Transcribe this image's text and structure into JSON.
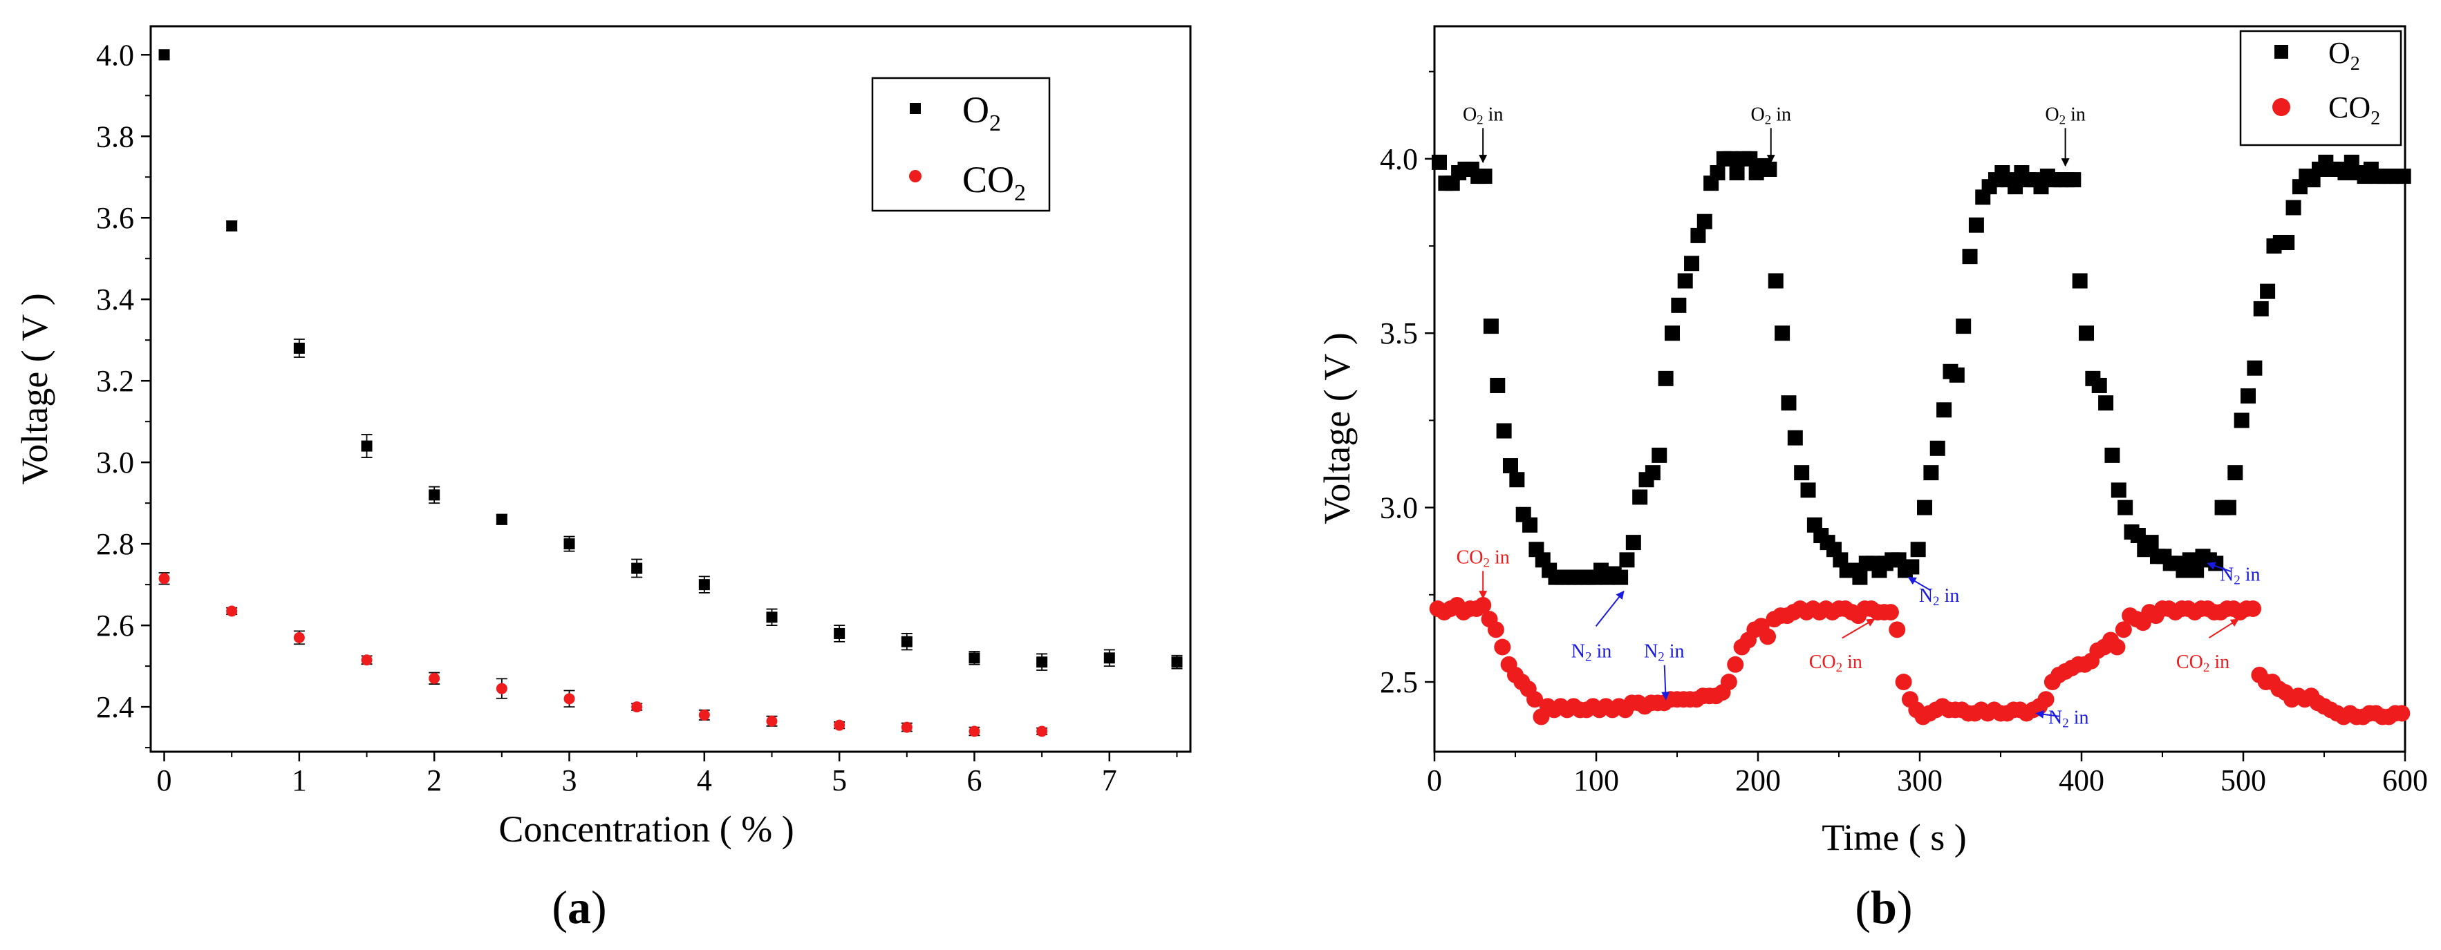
{
  "chart_data": [
    {
      "type": "scatter",
      "panel_label": "a",
      "xlabel": "Concentration ( % )",
      "ylabel": "Voltage ( V )",
      "xlim": [
        -0.1,
        7.6
      ],
      "ylim": [
        2.29,
        4.07
      ],
      "xticks": [
        0,
        1,
        2,
        3,
        4,
        5,
        6,
        7
      ],
      "yticks": [
        2.4,
        2.6,
        2.8,
        3.0,
        3.2,
        3.4,
        3.6,
        3.8,
        4.0
      ],
      "xtick_labels": [
        "0",
        "1",
        "2",
        "3",
        "4",
        "5",
        "6",
        "7"
      ],
      "ytick_labels": [
        "2.4",
        "2.6",
        "2.8",
        "3.0",
        "3.2",
        "3.4",
        "3.6",
        "3.8",
        "4.0"
      ],
      "legend_position": "top-right",
      "series": [
        {
          "name": "O2",
          "label_main": "O",
          "label_sub": "2",
          "color": "#000000",
          "marker": "square",
          "x": [
            0,
            0.5,
            1,
            1.5,
            2,
            2.5,
            3,
            3.5,
            4,
            4.5,
            5,
            5.5,
            6,
            6.5,
            7,
            7.5
          ],
          "y": [
            4.0,
            3.58,
            3.28,
            3.04,
            2.92,
            2.86,
            2.8,
            2.74,
            2.7,
            2.62,
            2.58,
            2.56,
            2.52,
            2.51,
            2.52,
            2.51
          ],
          "err": [
            0.012,
            0.012,
            0.022,
            0.028,
            0.02,
            0.012,
            0.018,
            0.022,
            0.02,
            0.02,
            0.02,
            0.02,
            0.016,
            0.02,
            0.02,
            0.016
          ]
        },
        {
          "name": "CO2",
          "label_main": "CO",
          "label_sub": "2",
          "color": "#ee1c1c",
          "marker": "circle",
          "x": [
            0,
            0.5,
            1,
            1.5,
            2,
            2.5,
            3,
            3.5,
            4,
            4.5,
            5,
            5.5,
            6,
            6.5
          ],
          "y": [
            2.715,
            2.635,
            2.57,
            2.515,
            2.47,
            2.445,
            2.42,
            2.4,
            2.38,
            2.365,
            2.355,
            2.35,
            2.34,
            2.34
          ],
          "err": [
            0.014,
            0.008,
            0.016,
            0.01,
            0.014,
            0.024,
            0.02,
            0.008,
            0.012,
            0.012,
            0.008,
            0.01,
            0.01,
            0.008
          ]
        }
      ]
    },
    {
      "type": "scatter",
      "panel_label": "b",
      "xlabel": "Time ( s )",
      "ylabel": "Voltage ( V )",
      "xlim": [
        0,
        600
      ],
      "ylim": [
        2.3,
        4.38
      ],
      "xticks": [
        0,
        100,
        200,
        300,
        400,
        500,
        600
      ],
      "yticks": [
        2.5,
        3.0,
        3.5,
        4.0
      ],
      "xtick_labels": [
        "0",
        "100",
        "200",
        "300",
        "400",
        "500",
        "600"
      ],
      "ytick_labels": [
        "2.5",
        "3.0",
        "3.5",
        "4.0"
      ],
      "legend_position": "top-right",
      "series": [
        {
          "name": "O2",
          "label_main": "O",
          "label_sub": "2",
          "color": "#000000",
          "marker": "square",
          "x": [
            3,
            7,
            11,
            15,
            19,
            23,
            27,
            31,
            35,
            39,
            43,
            47,
            51,
            55,
            59,
            63,
            67,
            71,
            75,
            79,
            83,
            87,
            91,
            95,
            99,
            103,
            107,
            111,
            115,
            119,
            123,
            127,
            131,
            135,
            139,
            143,
            147,
            151,
            155,
            159,
            163,
            167,
            171,
            175,
            179,
            183,
            187,
            191,
            195,
            199,
            203,
            207,
            211,
            215,
            219,
            223,
            227,
            231,
            235,
            239,
            243,
            247,
            251,
            255,
            259,
            263,
            267,
            271,
            275,
            279,
            283,
            287,
            291,
            295,
            299,
            303,
            307,
            311,
            315,
            319,
            323,
            327,
            331,
            335,
            339,
            343,
            347,
            351,
            355,
            359,
            363,
            367,
            371,
            375,
            379,
            383,
            387,
            391,
            395,
            399,
            403,
            407,
            411,
            415,
            419,
            423,
            427,
            431,
            435,
            439,
            443,
            447,
            451,
            455,
            459,
            463,
            467,
            471,
            475,
            479,
            483,
            487,
            491,
            495,
            499,
            503,
            507,
            511,
            515,
            519,
            523,
            527,
            531,
            535,
            539,
            543,
            547,
            551,
            555,
            559,
            563,
            567,
            571,
            575,
            579,
            583,
            587,
            591,
            595,
            599
          ],
          "y": [
            3.99,
            3.93,
            3.93,
            3.96,
            3.97,
            3.97,
            3.95,
            3.95,
            3.52,
            3.35,
            3.22,
            3.12,
            3.08,
            2.98,
            2.95,
            2.88,
            2.85,
            2.82,
            2.8,
            2.8,
            2.8,
            2.8,
            2.8,
            2.8,
            2.8,
            2.82,
            2.8,
            2.81,
            2.8,
            2.85,
            2.9,
            3.03,
            3.08,
            3.1,
            3.15,
            3.37,
            3.5,
            3.58,
            3.65,
            3.7,
            3.78,
            3.82,
            3.93,
            3.96,
            4.0,
            4.0,
            3.96,
            4.0,
            4.0,
            3.96,
            3.98,
            3.97,
            3.65,
            3.5,
            3.3,
            3.2,
            3.1,
            3.05,
            2.95,
            2.92,
            2.9,
            2.88,
            2.85,
            2.82,
            2.82,
            2.8,
            2.84,
            2.84,
            2.82,
            2.84,
            2.85,
            2.85,
            2.82,
            2.83,
            2.88,
            3.0,
            3.1,
            3.17,
            3.28,
            3.39,
            3.38,
            3.52,
            3.72,
            3.81,
            3.89,
            3.92,
            3.94,
            3.96,
            3.94,
            3.92,
            3.96,
            3.94,
            3.94,
            3.92,
            3.95,
            3.94,
            3.94,
            3.94,
            3.94,
            3.65,
            3.5,
            3.37,
            3.35,
            3.3,
            3.15,
            3.05,
            3.0,
            2.93,
            2.92,
            2.88,
            2.9,
            2.86,
            2.86,
            2.84,
            2.84,
            2.82,
            2.85,
            2.82,
            2.86,
            2.85,
            2.84,
            3.0,
            3.0,
            3.1,
            3.25,
            3.32,
            3.4,
            3.57,
            3.62,
            3.75,
            3.76,
            3.76,
            3.86,
            3.92,
            3.95,
            3.94,
            3.97,
            3.99,
            3.97,
            3.97,
            3.96,
            3.99,
            3.96,
            3.95,
            3.97,
            3.95,
            3.95,
            3.95,
            3.95,
            3.95
          ]
        },
        {
          "name": "CO2",
          "label_main": "CO",
          "label_sub": "2",
          "color": "#ee1c1c",
          "marker": "circle",
          "x": [
            2,
            6,
            10,
            14,
            18,
            22,
            26,
            30,
            34,
            38,
            42,
            46,
            50,
            54,
            58,
            62,
            66,
            70,
            74,
            78,
            82,
            86,
            90,
            94,
            98,
            102,
            106,
            110,
            114,
            118,
            122,
            126,
            130,
            134,
            138,
            142,
            146,
            150,
            154,
            158,
            162,
            166,
            170,
            174,
            178,
            182,
            186,
            190,
            194,
            198,
            202,
            206,
            210,
            214,
            218,
            222,
            226,
            230,
            234,
            238,
            242,
            246,
            250,
            254,
            258,
            262,
            266,
            270,
            274,
            278,
            282,
            286,
            290,
            294,
            298,
            302,
            306,
            310,
            314,
            318,
            322,
            326,
            330,
            334,
            338,
            342,
            346,
            350,
            354,
            358,
            362,
            366,
            370,
            374,
            378,
            382,
            386,
            390,
            394,
            398,
            402,
            406,
            410,
            414,
            418,
            422,
            426,
            430,
            434,
            438,
            442,
            446,
            450,
            454,
            458,
            462,
            466,
            470,
            474,
            478,
            482,
            486,
            490,
            494,
            498,
            502,
            506,
            510,
            514,
            518,
            522,
            526,
            530,
            534,
            538,
            542,
            546,
            550,
            554,
            558,
            562,
            566,
            570,
            574,
            578,
            582,
            586,
            590,
            594,
            598
          ],
          "y": [
            2.71,
            2.7,
            2.71,
            2.72,
            2.7,
            2.71,
            2.71,
            2.72,
            2.68,
            2.65,
            2.6,
            2.55,
            2.52,
            2.5,
            2.48,
            2.45,
            2.4,
            2.43,
            2.42,
            2.43,
            2.42,
            2.43,
            2.42,
            2.42,
            2.43,
            2.42,
            2.43,
            2.42,
            2.43,
            2.42,
            2.44,
            2.44,
            2.43,
            2.44,
            2.44,
            2.44,
            2.45,
            2.45,
            2.45,
            2.45,
            2.45,
            2.46,
            2.46,
            2.46,
            2.47,
            2.5,
            2.55,
            2.6,
            2.62,
            2.65,
            2.66,
            2.63,
            2.68,
            2.69,
            2.69,
            2.7,
            2.71,
            2.7,
            2.71,
            2.7,
            2.71,
            2.7,
            2.71,
            2.71,
            2.7,
            2.69,
            2.71,
            2.71,
            2.7,
            2.7,
            2.7,
            2.65,
            2.5,
            2.45,
            2.42,
            2.4,
            2.41,
            2.42,
            2.43,
            2.42,
            2.42,
            2.42,
            2.41,
            2.41,
            2.42,
            2.41,
            2.42,
            2.41,
            2.41,
            2.42,
            2.42,
            2.41,
            2.42,
            2.43,
            2.45,
            2.5,
            2.52,
            2.53,
            2.54,
            2.55,
            2.55,
            2.56,
            2.59,
            2.6,
            2.62,
            2.6,
            2.65,
            2.69,
            2.68,
            2.67,
            2.7,
            2.69,
            2.71,
            2.71,
            2.7,
            2.71,
            2.71,
            2.7,
            2.71,
            2.71,
            2.7,
            2.7,
            2.71,
            2.71,
            2.7,
            2.71,
            2.71,
            2.52,
            2.5,
            2.5,
            2.48,
            2.47,
            2.45,
            2.46,
            2.45,
            2.46,
            2.44,
            2.43,
            2.42,
            2.41,
            2.4,
            2.41,
            2.4,
            2.4,
            2.41,
            2.41,
            2.4,
            2.4,
            2.41,
            2.41
          ]
        }
      ],
      "annotations": [
        {
          "id": "o2-in-1",
          "main": "O",
          "sub": "2",
          "tail": " in",
          "color": "#000000",
          "tx": 30,
          "ty": 4.11,
          "ax": 30,
          "ay": 3.99
        },
        {
          "id": "o2-in-2",
          "main": "O",
          "sub": "2",
          "tail": " in",
          "color": "#000000",
          "tx": 208,
          "ty": 4.11,
          "ax": 208,
          "ay": 3.99
        },
        {
          "id": "o2-in-3",
          "main": "O",
          "sub": "2",
          "tail": " in",
          "color": "#000000",
          "tx": 390,
          "ty": 4.11,
          "ax": 390,
          "ay": 3.98
        },
        {
          "id": "co2-in-1",
          "main": "CO",
          "sub": "2",
          "tail": " in",
          "color": "#ee1c1c",
          "tx": 30,
          "ty": 2.84,
          "ax": 30,
          "ay": 2.74
        },
        {
          "id": "co2-in-2",
          "main": "CO",
          "sub": "2",
          "tail": " in",
          "color": "#ee1c1c",
          "tx": 248,
          "ty": 2.54,
          "ax": 272,
          "ay": 2.68
        },
        {
          "id": "co2-in-3",
          "main": "CO",
          "sub": "2",
          "tail": " in",
          "color": "#ee1c1c",
          "tx": 475,
          "ty": 2.54,
          "ax": 497,
          "ay": 2.68
        },
        {
          "id": "n2-in-1",
          "main": "N",
          "sub": "2",
          "tail": " in",
          "color": "#1a1ae0",
          "tx": 97,
          "ty": 2.57,
          "ax": 117,
          "ay": 2.76
        },
        {
          "id": "n2-in-2",
          "main": "N",
          "sub": "2",
          "tail": " in",
          "color": "#1a1ae0",
          "tx": 142,
          "ty": 2.57,
          "ax": 143,
          "ay": 2.45
        },
        {
          "id": "n2-in-3",
          "main": "N",
          "sub": "2",
          "tail": " in",
          "color": "#1a1ae0",
          "tx": 312,
          "ty": 2.73,
          "ax": 293,
          "ay": 2.8
        },
        {
          "id": "n2-in-4",
          "main": "N",
          "sub": "2",
          "tail": " in",
          "color": "#1a1ae0",
          "tx": 392,
          "ty": 2.38,
          "ax": 372,
          "ay": 2.41
        },
        {
          "id": "n2-in-5",
          "main": "N",
          "sub": "2",
          "tail": " in",
          "color": "#1a1ae0",
          "tx": 498,
          "ty": 2.79,
          "ax": 478,
          "ay": 2.84
        }
      ]
    }
  ]
}
